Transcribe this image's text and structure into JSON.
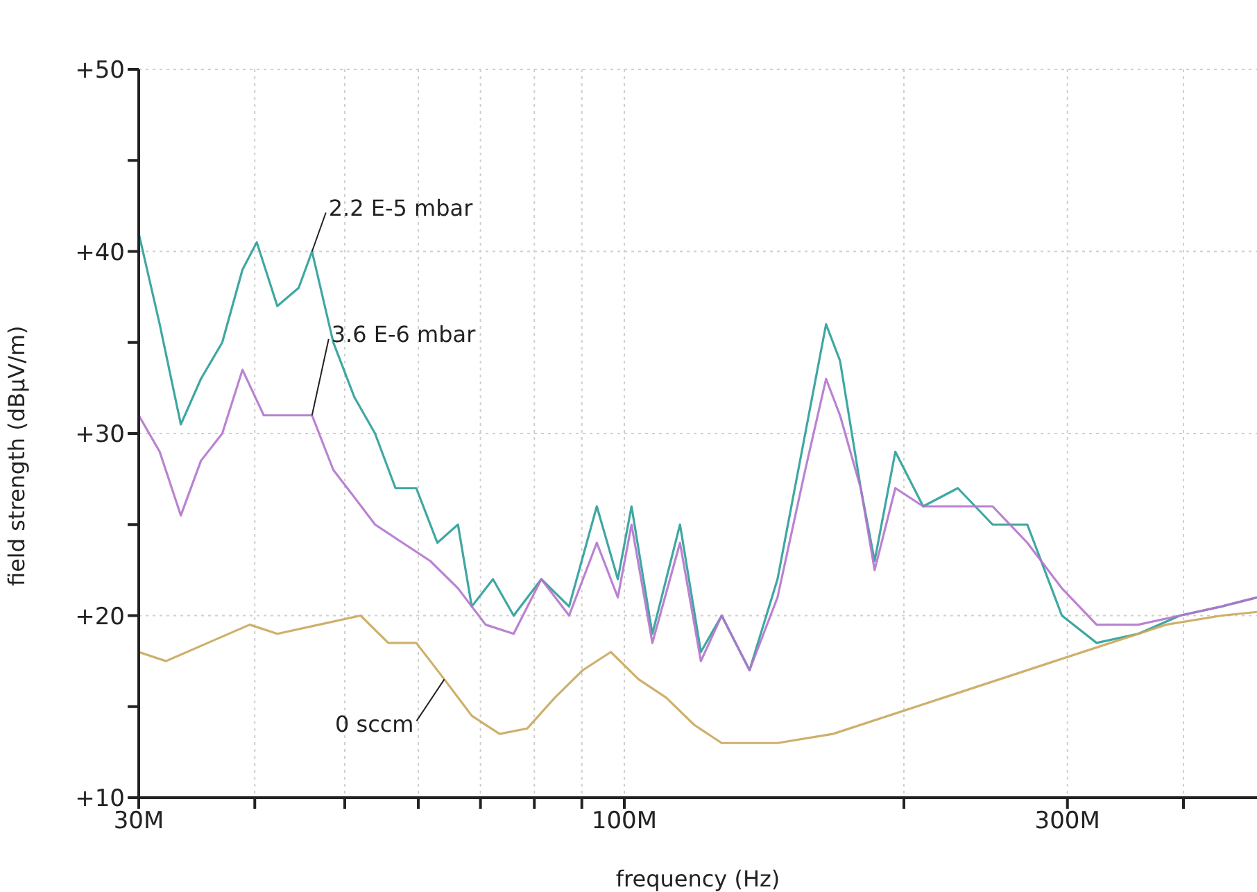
{
  "chart_data": {
    "type": "line",
    "xlabel": "frequency (Hz)",
    "ylabel": "field strength (dBµV/m)",
    "log": "x",
    "grid": true,
    "legend": false,
    "marker": "none",
    "line_style": "solid",
    "xlim": [
      30000000.0,
      480000000.0
    ],
    "xticks": [
      {
        "value": 30000000.0,
        "label": "30M"
      },
      {
        "value": 40000000.0,
        "label": null
      },
      {
        "value": 50000000.0,
        "label": null
      },
      {
        "value": 60000000.0,
        "label": null
      },
      {
        "value": 70000000.0,
        "label": null
      },
      {
        "value": 80000000.0,
        "label": null
      },
      {
        "value": 90000000.0,
        "label": null
      },
      {
        "value": 100000000.0,
        "label": "100M"
      },
      {
        "value": 200000000.0,
        "label": null
      },
      {
        "value": 300000000.0,
        "label": "300M"
      },
      {
        "value": 400000000.0,
        "label": null
      }
    ],
    "ylim": [
      10,
      50
    ],
    "yticks": [
      {
        "value": 10,
        "label": "+10"
      },
      {
        "value": 15,
        "label": null
      },
      {
        "value": 20,
        "label": "+20"
      },
      {
        "value": 25,
        "label": null
      },
      {
        "value": 30,
        "label": "+30"
      },
      {
        "value": 35,
        "label": null
      },
      {
        "value": 40,
        "label": "+40"
      },
      {
        "value": 45,
        "label": null
      },
      {
        "value": 50,
        "label": "+50"
      }
    ],
    "series": [
      {
        "name": "2.2 E-5 mbar",
        "color": "#2a9d98",
        "x": [
          30000000.0,
          31600000.0,
          33300000.0,
          35000000.0,
          36900000.0,
          38800000.0,
          40200000.0,
          42300000.0,
          44600000.0,
          46100000.0,
          48600000.0,
          51200000.0,
          53900000.0,
          56700000.0,
          59700000.0,
          62900000.0,
          66200000.0,
          68500000.0,
          72200000.0,
          76000000.0,
          81400000.0,
          87200000.0,
          93400000.0,
          98400000.0,
          101800000.0,
          107200000.0,
          114800000.0,
          120900000.0,
          127300000.0,
          136400000.0,
          146200000.0,
          156600000.0,
          164900000.0,
          170700000.0,
          179700000.0,
          186000000.0,
          195800000.0,
          209800000.0,
          228600000.0,
          249200000.0,
          271600000.0,
          295900000.0,
          322500000.0,
          357600000.0,
          396500000.0,
          439600000.0,
          480000000.0
        ],
        "values": [
          41,
          36,
          30.5,
          33,
          35,
          39,
          40.5,
          37,
          38,
          40,
          35,
          32,
          30,
          27,
          27,
          24,
          25,
          20.5,
          22,
          20,
          22,
          20.5,
          26,
          22,
          26,
          19,
          25,
          18,
          20,
          17,
          22,
          30,
          36,
          34,
          27,
          23,
          29,
          26,
          27,
          25,
          25,
          20,
          18.5,
          19,
          20,
          20.5,
          21
        ]
      },
      {
        "name": "3.6 E-6 mbar",
        "color": "#b274cc",
        "x": [
          30000000.0,
          31600000.0,
          33300000.0,
          35000000.0,
          36900000.0,
          38800000.0,
          40900000.0,
          43800000.0,
          46100000.0,
          48600000.0,
          51200000.0,
          53900000.0,
          57700000.0,
          61800000.0,
          66200000.0,
          70900000.0,
          76000000.0,
          81400000.0,
          87200000.0,
          93400000.0,
          98400000.0,
          101800000.0,
          107200000.0,
          114800000.0,
          120900000.0,
          127300000.0,
          136400000.0,
          146200000.0,
          156600000.0,
          164900000.0,
          170700000.0,
          179700000.0,
          186000000.0,
          195800000.0,
          209800000.0,
          228600000.0,
          249200000.0,
          271600000.0,
          295900000.0,
          322500000.0,
          357600000.0,
          396500000.0,
          439600000.0,
          480000000.0
        ],
        "values": [
          31,
          29,
          25.5,
          28.5,
          30,
          33.5,
          31,
          31,
          31,
          28,
          26.5,
          25,
          24,
          23,
          21.5,
          19.5,
          19,
          22,
          20,
          24,
          21,
          25,
          18.5,
          24,
          17.5,
          20,
          17,
          21,
          28,
          33,
          31,
          27,
          22.5,
          27,
          26,
          26,
          26,
          24,
          21.5,
          19.5,
          19.5,
          20,
          20.5,
          21
        ]
      },
      {
        "name": "0 sccm",
        "color": "#c9a75c",
        "x": [
          30000000.0,
          32100000.0,
          35600000.0,
          39500000.0,
          42300000.0,
          46900000.0,
          52000000.0,
          55700000.0,
          59700000.0,
          64000000.0,
          68500000.0,
          73400000.0,
          78600000.0,
          84200000.0,
          90200000.0,
          96700000.0,
          103600000.0,
          110900000.0,
          118900000.0,
          127300000.0,
          146200000.0,
          167700000.0,
          192500000.0,
          220900000.0,
          253500000.0,
          290800000.0,
          333800000.0,
          383000000.0,
          439600000.0,
          480000000.0
        ],
        "values": [
          18,
          17.5,
          18.5,
          19.5,
          19,
          19.5,
          20,
          18.5,
          18.5,
          16.5,
          14.5,
          13.5,
          13.8,
          15.5,
          17,
          18,
          16.5,
          15.5,
          14,
          13,
          13,
          13.5,
          14.5,
          15.5,
          16.5,
          17.5,
          18.5,
          19.5,
          20,
          20.2
        ]
      }
    ]
  }
}
